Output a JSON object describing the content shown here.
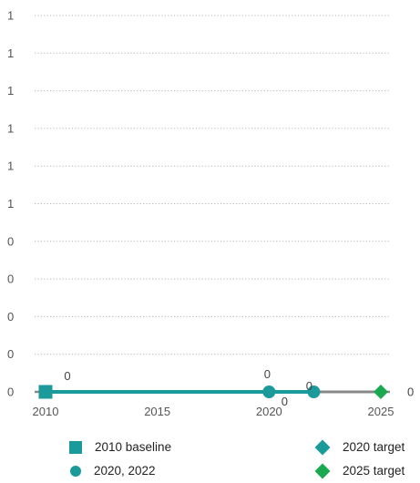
{
  "chart_data": {
    "type": "line",
    "title": "",
    "xlabel": "",
    "ylabel": "",
    "x_ticks": [
      "2010",
      "2015",
      "2020",
      "2025"
    ],
    "y_ticks": [
      "1",
      "1",
      "1",
      "1",
      "1",
      "1",
      "0",
      "0",
      "0",
      "0",
      "0"
    ],
    "xlim": [
      2010,
      2025
    ],
    "ylim": [
      0,
      1
    ],
    "grid": "horizontal-dotted",
    "legend_position": "bottom",
    "end_label": "0",
    "series": [
      {
        "name": "2010 baseline",
        "marker": "square",
        "color": "#1a9a9a",
        "points": [
          {
            "x": 2010,
            "y": 0,
            "label": "0"
          }
        ]
      },
      {
        "name": "2020, 2022",
        "marker": "circle",
        "color": "#1a9a9a",
        "points": [
          {
            "x": 2020,
            "y": 0,
            "label": "0"
          },
          {
            "x": 2022,
            "y": 0,
            "label": "0"
          }
        ]
      },
      {
        "name": "2020 target",
        "marker": "diamond",
        "color": "#1a9a9a",
        "points": [
          {
            "x": 2020,
            "y": 0,
            "label": "0"
          }
        ]
      },
      {
        "name": "2025 target",
        "marker": "diamond",
        "color": "#1aa850",
        "points": [
          {
            "x": 2025,
            "y": 0,
            "label": "0"
          }
        ]
      }
    ],
    "lines": [
      {
        "from": 2010,
        "to": 2022,
        "y": 0,
        "color": "#1a9a9a",
        "style": "actual"
      },
      {
        "from": 2022,
        "to": 2025,
        "y": 0,
        "color": "#888888",
        "style": "projection"
      }
    ]
  }
}
